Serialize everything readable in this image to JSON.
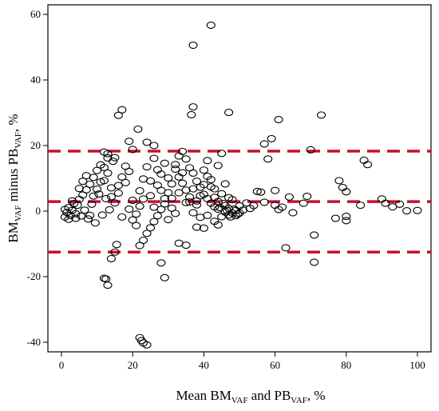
{
  "chart_data": {
    "type": "scatter",
    "title": "",
    "xlabel": {
      "prefix": "Mean BM",
      "sub1": "VAF",
      "mid": " and PB",
      "sub2": "VAF",
      "suffix": ", %"
    },
    "ylabel": {
      "prefix": "BM",
      "sub1": "VAF",
      "mid": " minus PB",
      "sub2": "VAF",
      "suffix": ", %"
    },
    "xlim": [
      0,
      100
    ],
    "ylim": [
      -42,
      62
    ],
    "x_ticks": [
      0,
      20,
      40,
      60,
      80,
      100
    ],
    "y_ticks": [
      -40,
      -20,
      0,
      20,
      40,
      60
    ],
    "x_tick_labels": [
      "0",
      "20",
      "40",
      "60",
      "80",
      "100"
    ],
    "y_tick_labels": [
      "-40",
      "-20",
      "0",
      "20",
      "40",
      "60"
    ],
    "grid": false,
    "marker": "open-circle",
    "reference_lines": [
      {
        "name": "upper limit of agreement",
        "y": 18.3,
        "color": "#c8102e",
        "style": "dashed"
      },
      {
        "name": "mean difference",
        "y": 2.9,
        "color": "#c8102e",
        "style": "dashed"
      },
      {
        "name": "lower limit of agreement",
        "y": -12.5,
        "color": "#c8102e",
        "style": "dashed"
      }
    ],
    "series": [
      {
        "points": [
          [
            42,
            56.7
          ],
          [
            37,
            50.6
          ],
          [
            37,
            31.8
          ],
          [
            36.5,
            29.4
          ],
          [
            47,
            30.1
          ],
          [
            17,
            30.9
          ],
          [
            16,
            29.2
          ],
          [
            73,
            29.3
          ],
          [
            61,
            27.9
          ],
          [
            59,
            22.1
          ],
          [
            57,
            20.5
          ],
          [
            21.5,
            25
          ],
          [
            24,
            21
          ],
          [
            26,
            20
          ],
          [
            19,
            21.3
          ],
          [
            20,
            18.8
          ],
          [
            15,
            16.3
          ],
          [
            13,
            17.5
          ],
          [
            12,
            18
          ],
          [
            70,
            18.7
          ],
          [
            78,
            9.3
          ],
          [
            79,
            7.2
          ],
          [
            80,
            5.9
          ],
          [
            85,
            15.5
          ],
          [
            86,
            14.2
          ],
          [
            90,
            3.7
          ],
          [
            91,
            2.4
          ],
          [
            93,
            1.3
          ],
          [
            95,
            2.1
          ],
          [
            97,
            0.1
          ],
          [
            100,
            0.2
          ],
          [
            68,
            2.4
          ],
          [
            69,
            4.5
          ],
          [
            77,
            -2.2
          ],
          [
            80,
            -1.6
          ],
          [
            80,
            -2.9
          ],
          [
            84,
            1.8
          ],
          [
            60,
            1.8
          ],
          [
            61,
            0.5
          ],
          [
            62,
            1.2
          ],
          [
            64,
            4.3
          ],
          [
            65,
            -0.5
          ],
          [
            56,
            5.8
          ],
          [
            57,
            2.7
          ],
          [
            58,
            15.9
          ],
          [
            60,
            6.3
          ],
          [
            52,
            2.5
          ],
          [
            53,
            0.8
          ],
          [
            54,
            1.7
          ],
          [
            55,
            6
          ],
          [
            50,
            1.6
          ],
          [
            49,
            0.2
          ],
          [
            48,
            -0.6
          ],
          [
            47,
            -1.2
          ],
          [
            46,
            -0.3
          ],
          [
            45,
            -1.7
          ],
          [
            44,
            0.6
          ],
          [
            43,
            1.3
          ],
          [
            42,
            2.4
          ],
          [
            41,
            3.8
          ],
          [
            40,
            5.1
          ],
          [
            39,
            7.3
          ],
          [
            38,
            9.1
          ],
          [
            37,
            11.6
          ],
          [
            36,
            13.2
          ],
          [
            35,
            15.9
          ],
          [
            34,
            18.2
          ],
          [
            33,
            10.4
          ],
          [
            32,
            12.8
          ],
          [
            31,
            8.3
          ],
          [
            30,
            5.6
          ],
          [
            29,
            2.2
          ],
          [
            28,
            0.5
          ],
          [
            27,
            -1.4
          ],
          [
            26,
            -3.2
          ],
          [
            25,
            -5.1
          ],
          [
            24,
            -6.8
          ],
          [
            23,
            -8.9
          ],
          [
            22,
            -10.5
          ],
          [
            28,
            -15.8
          ],
          [
            29,
            -20.3
          ],
          [
            22,
            -38.6
          ],
          [
            22.5,
            -39.5
          ],
          [
            23,
            -40.2
          ],
          [
            24,
            -40.8
          ],
          [
            12,
            -20.5
          ],
          [
            12.5,
            -20.7
          ],
          [
            13,
            -22.6
          ],
          [
            15,
            -12.5
          ],
          [
            15.5,
            -10.2
          ],
          [
            14,
            -14.5
          ],
          [
            33,
            -9.8
          ],
          [
            35,
            -10.4
          ],
          [
            38,
            -4.9
          ],
          [
            40,
            -5.2
          ],
          [
            41,
            -1.3
          ],
          [
            43,
            -3.1
          ],
          [
            44,
            -4.2
          ],
          [
            71,
            -15.6
          ],
          [
            71,
            -7.3
          ],
          [
            63,
            -11.2
          ],
          [
            1,
            0.5
          ],
          [
            1.5,
            -0.4
          ],
          [
            2,
            1.1
          ],
          [
            2.5,
            -1.3
          ],
          [
            3,
            0.2
          ],
          [
            3.5,
            2.3
          ],
          [
            4,
            -0.8
          ],
          [
            4.5,
            1.8
          ],
          [
            5,
            3.6
          ],
          [
            5.5,
            -1.5
          ],
          [
            6,
            4.9
          ],
          [
            6.5,
            0.3
          ],
          [
            7,
            6.5
          ],
          [
            7.5,
            -2.4
          ],
          [
            8,
            8.2
          ],
          [
            8.5,
            2.1
          ],
          [
            9,
            10.3
          ],
          [
            9.5,
            -3.6
          ],
          [
            10,
            12.4
          ],
          [
            10.5,
            5.2
          ],
          [
            11,
            14.1
          ],
          [
            11.5,
            -1.2
          ],
          [
            12,
            9.3
          ],
          [
            12.5,
            3.8
          ],
          [
            13,
            11.6
          ],
          [
            13.5,
            0.4
          ],
          [
            14,
            7.1
          ],
          [
            14.5,
            15.2
          ],
          [
            15,
            2.5
          ],
          [
            16,
            5.5
          ],
          [
            17,
            -1.8
          ],
          [
            18,
            8.7
          ],
          [
            19,
            12.1
          ],
          [
            20,
            3.3
          ],
          [
            21,
            -0.9
          ],
          [
            22,
            6.2
          ],
          [
            23,
            9.8
          ],
          [
            24,
            13.5
          ],
          [
            25,
            4.7
          ],
          [
            26,
            1.2
          ],
          [
            27,
            7.9
          ],
          [
            28,
            11.3
          ],
          [
            29,
            14.6
          ],
          [
            30,
            10.1
          ],
          [
            31,
            3.9
          ],
          [
            32,
            -0.7
          ],
          [
            33,
            5.6
          ],
          [
            34,
            8.5
          ],
          [
            35,
            2.6
          ],
          [
            36,
            4.3
          ],
          [
            37,
            6.8
          ],
          [
            38,
            3.1
          ],
          [
            39,
            -1.9
          ],
          [
            40,
            8.1
          ],
          [
            41,
            10.6
          ],
          [
            42,
            7.4
          ],
          [
            43,
            4.2
          ],
          [
            44,
            2.9
          ],
          [
            45,
            5.3
          ],
          [
            46,
            1.7
          ],
          [
            47,
            0.8
          ],
          [
            48,
            3.5
          ],
          [
            49,
            -1.4
          ],
          [
            50,
            -0.6
          ],
          [
            51,
            0.3
          ],
          [
            49.5,
            -0.9
          ],
          [
            48.5,
            0.6
          ],
          [
            47.5,
            -1.8
          ],
          [
            46.5,
            0.2
          ],
          [
            45.5,
            2.3
          ],
          [
            44.5,
            1.1
          ],
          [
            1,
            -1.8
          ],
          [
            2,
            -2.5
          ],
          [
            3,
            3.1
          ],
          [
            4,
            -2.2
          ],
          [
            5,
            6.9
          ],
          [
            6,
            9.1
          ],
          [
            7,
            10.8
          ],
          [
            8,
            -1.3
          ],
          [
            9,
            4.6
          ],
          [
            10,
            6.7
          ],
          [
            11,
            8.9
          ],
          [
            12,
            13.3
          ],
          [
            13,
            16.2
          ],
          [
            14,
            4.4
          ],
          [
            16,
            7.8
          ],
          [
            17,
            10.4
          ],
          [
            18,
            13.7
          ],
          [
            19,
            0.6
          ],
          [
            20,
            -2.7
          ],
          [
            21,
            -4.4
          ],
          [
            22,
            1.5
          ],
          [
            23,
            3.7
          ],
          [
            25,
            9.2
          ],
          [
            26,
            16.1
          ],
          [
            27,
            12.6
          ],
          [
            28,
            6.3
          ],
          [
            29,
            3.8
          ],
          [
            30,
            -2.6
          ],
          [
            31,
            0.9
          ],
          [
            32,
            14.2
          ],
          [
            33,
            16.8
          ],
          [
            34,
            11.7
          ],
          [
            35,
            6.4
          ],
          [
            36,
            2.8
          ],
          [
            37,
            -0.5
          ],
          [
            38,
            1.9
          ],
          [
            39,
            4.7
          ],
          [
            40,
            12.5
          ],
          [
            41,
            15.4
          ],
          [
            42,
            9.6
          ],
          [
            43,
            6.8
          ],
          [
            44,
            13.9
          ],
          [
            45,
            17.6
          ],
          [
            46,
            8.3
          ],
          [
            47,
            4.1
          ]
        ]
      }
    ]
  }
}
